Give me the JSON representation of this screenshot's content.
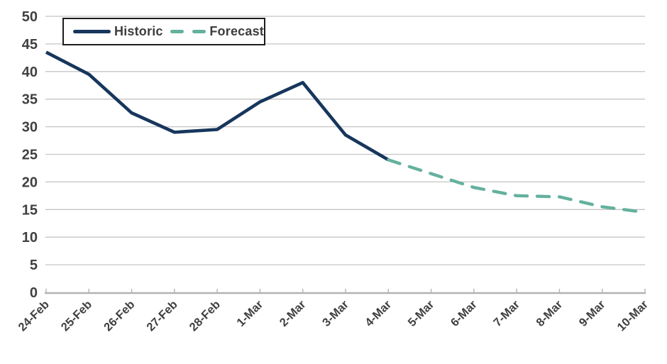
{
  "chart_data": {
    "type": "line",
    "title": "",
    "xlabel": "",
    "ylabel": "",
    "categories": [
      "24-Feb",
      "25-Feb",
      "26-Feb",
      "27-Feb",
      "28-Feb",
      "1-Mar",
      "2-Mar",
      "3-Mar",
      "4-Mar",
      "5-Mar",
      "6-Mar",
      "7-Mar",
      "8-Mar",
      "9-Mar",
      "10-Mar"
    ],
    "y_ticks": [
      0,
      5,
      10,
      15,
      20,
      25,
      30,
      35,
      40,
      45,
      50
    ],
    "ylim": [
      0,
      50
    ],
    "grid": true,
    "legend_position": "top-left",
    "series": [
      {
        "name": "Historic",
        "style": "solid",
        "color": "#17365c",
        "values": [
          43.5,
          39.5,
          32.5,
          29,
          29.5,
          34.5,
          38,
          28.5,
          24,
          null,
          null,
          null,
          null,
          null,
          null
        ]
      },
      {
        "name": "Forecast",
        "style": "dashed",
        "color": "#64b19e",
        "values": [
          null,
          null,
          null,
          null,
          null,
          null,
          null,
          null,
          24,
          21.5,
          19,
          17.5,
          17.3,
          15.5,
          14.5
        ]
      }
    ]
  },
  "colors": {
    "background": "#ffffff",
    "gridline": "#c4c4c4",
    "axis_line": "#b3b3b3",
    "tick_label": "#404040",
    "legend_border": "#1d1d1d",
    "legend_text": "#3d3d3d"
  }
}
